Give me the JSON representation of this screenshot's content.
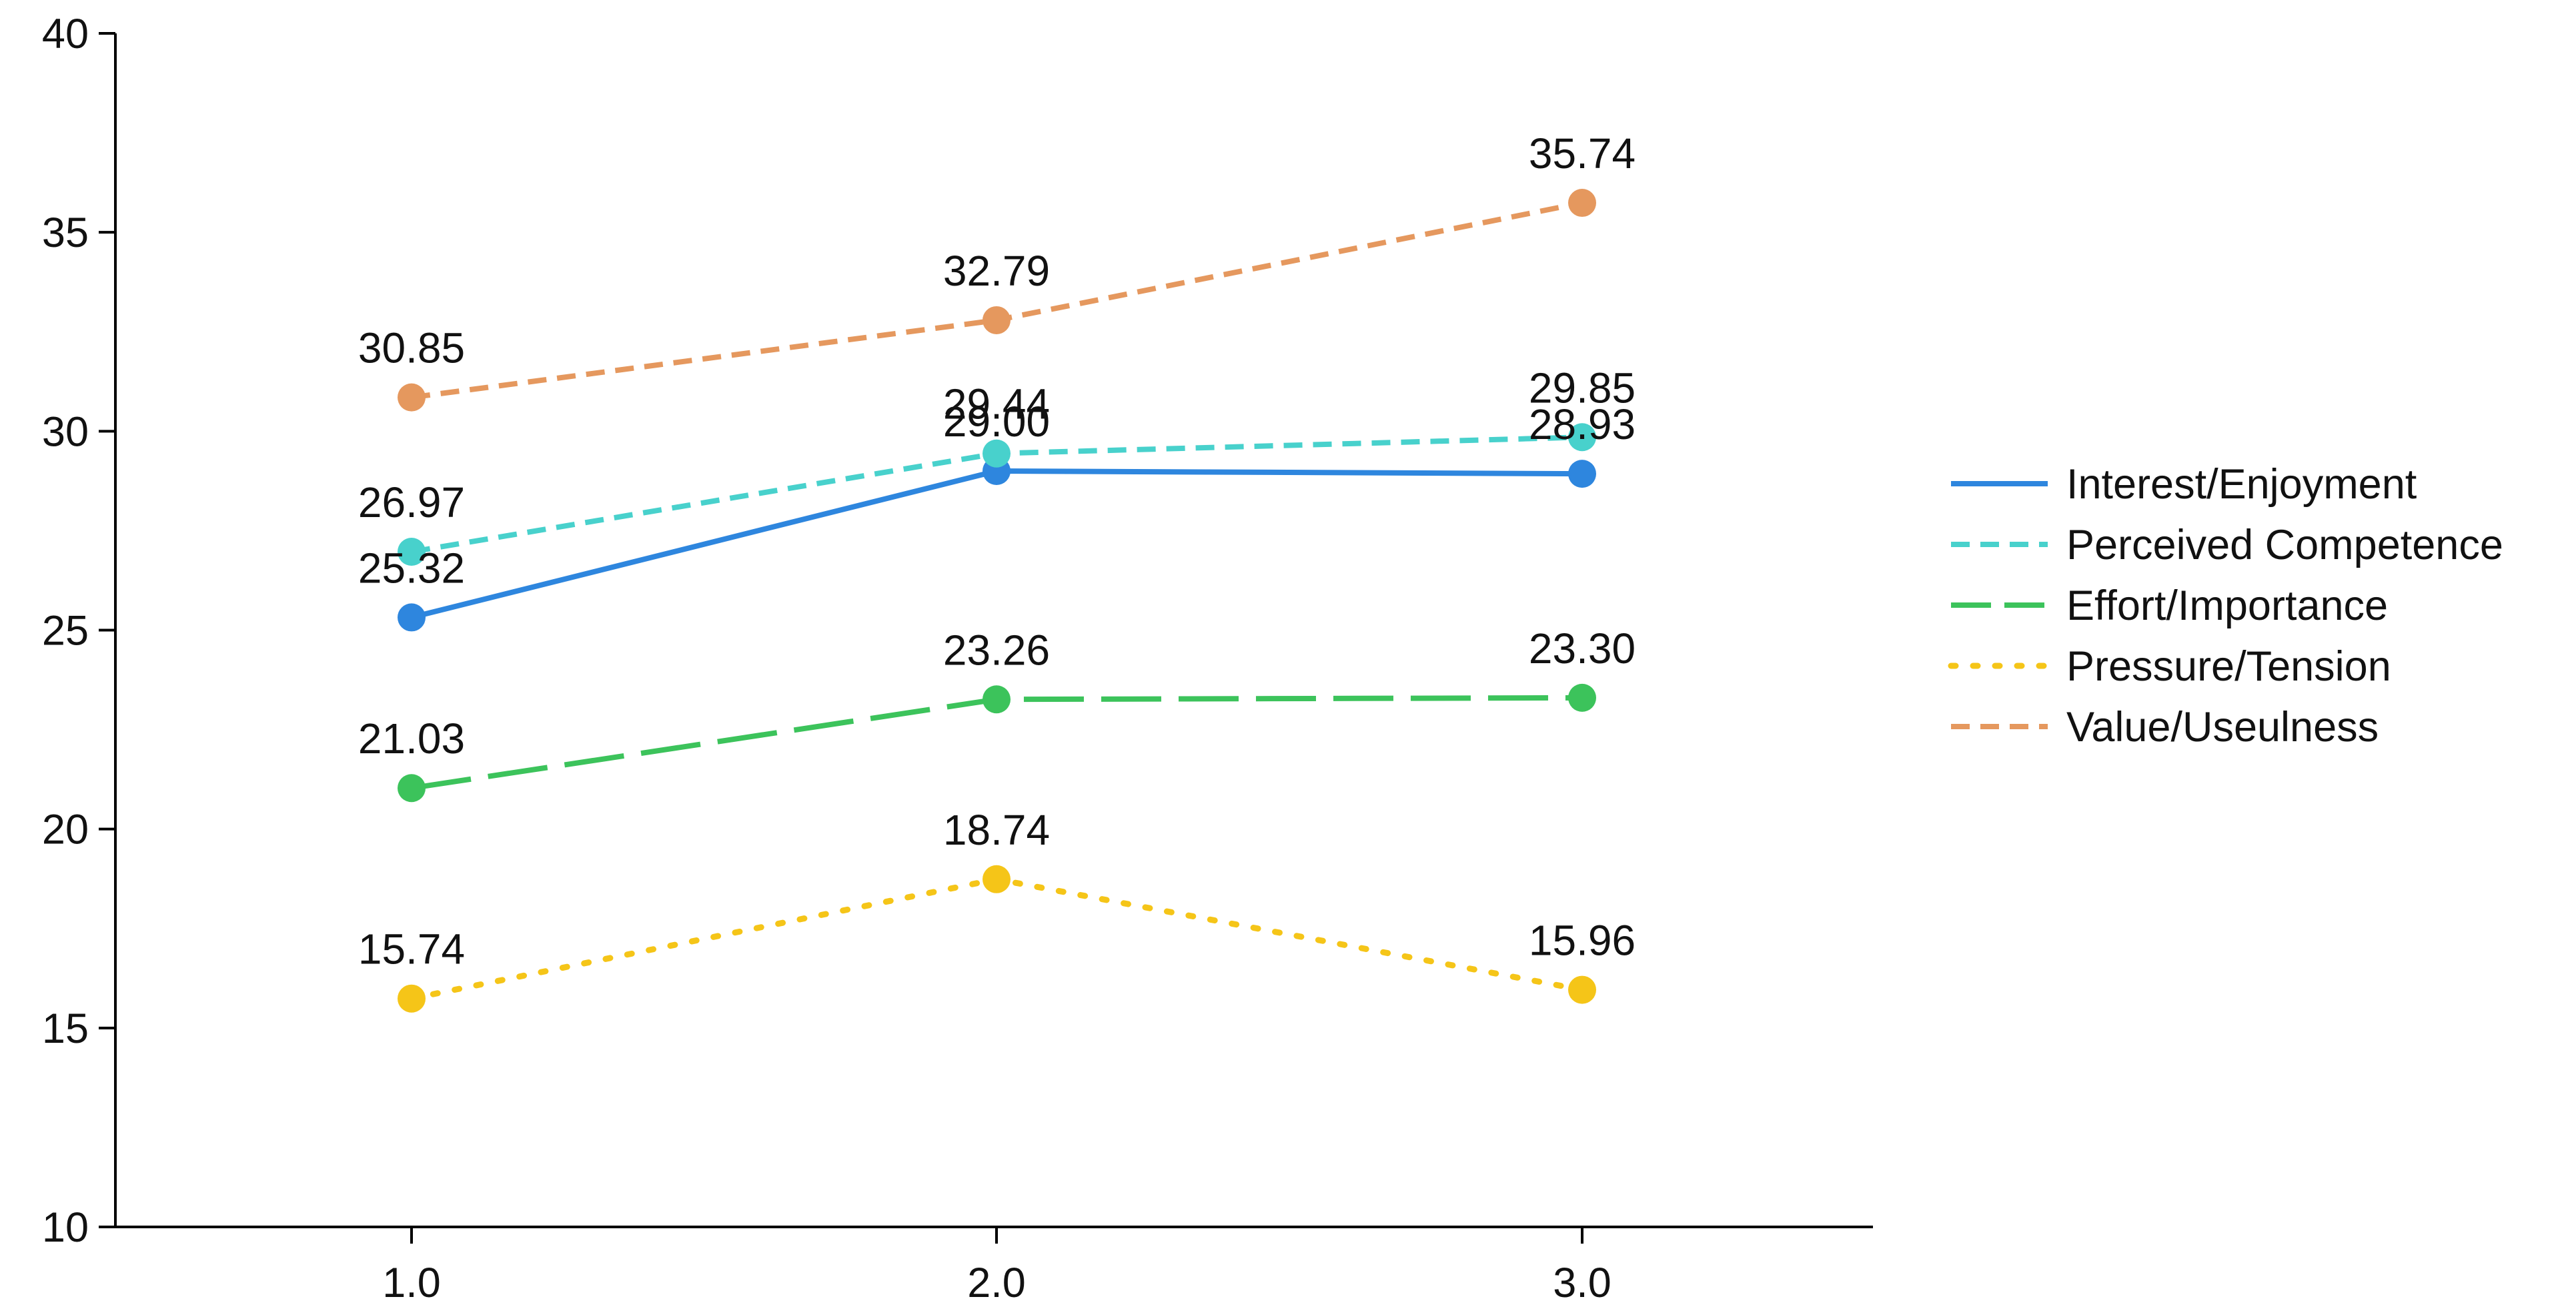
{
  "chart_data": {
    "type": "line",
    "title": "",
    "xlabel": "",
    "ylabel": "",
    "x": [
      1.0,
      2.0,
      3.0
    ],
    "x_tick_labels": [
      "1.0",
      "2.0",
      "3.0"
    ],
    "ylim": [
      10,
      40
    ],
    "y_ticks": [
      10,
      15,
      20,
      25,
      30,
      35,
      40
    ],
    "y_tick_labels": [
      "10",
      "15",
      "20",
      "25",
      "30",
      "35",
      "40"
    ],
    "grid": false,
    "legend_position": "right",
    "series": [
      {
        "name": "Interest/Enjoyment",
        "values": [
          25.32,
          29.0,
          28.93
        ],
        "labels": [
          "25.32",
          "29.00",
          "28.93"
        ],
        "color": "#2E86DE",
        "line_style": "solid"
      },
      {
        "name": "Perceived Competence",
        "values": [
          26.97,
          29.44,
          29.85
        ],
        "labels": [
          "26.97",
          "29.44",
          "29.85"
        ],
        "color": "#48D1CC",
        "line_style": "dashed"
      },
      {
        "name": "Effort/Importance",
        "values": [
          21.03,
          23.26,
          23.3
        ],
        "labels": [
          "21.03",
          "23.26",
          "23.30"
        ],
        "color": "#3CC35B",
        "line_style": "long-dashed"
      },
      {
        "name": "Pressure/Tension",
        "values": [
          15.74,
          18.74,
          15.96
        ],
        "labels": [
          "15.74",
          "18.74",
          "15.96"
        ],
        "color": "#F5C518",
        "line_style": "dotted"
      },
      {
        "name": "Value/Useulness",
        "values": [
          30.85,
          32.79,
          35.74
        ],
        "labels": [
          "30.85",
          "32.79",
          "35.74"
        ],
        "color": "#E5985E",
        "line_style": "dashed"
      }
    ]
  }
}
